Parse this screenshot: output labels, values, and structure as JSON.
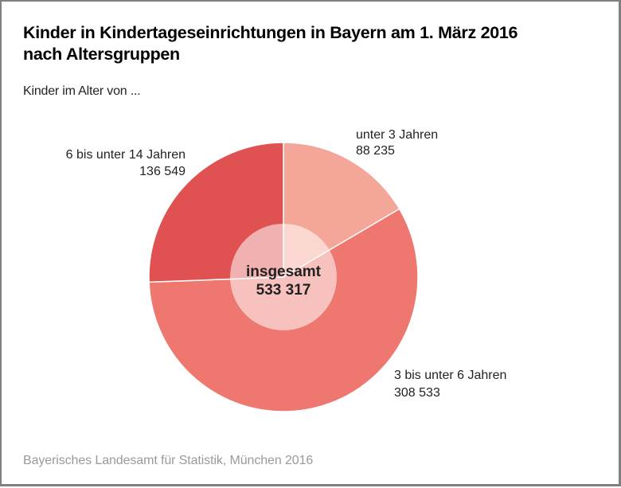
{
  "chart_data": {
    "type": "pie",
    "title": "Kinder in Kindertageseinrichtungen in Bayern am 1. März 2016 nach Altersgruppen",
    "title_lines": [
      "Kinder in Kindertageseinrichtungen in Bayern am 1. März 2016",
      "nach Altersgruppen"
    ],
    "subtitle": "Kinder im Alter von ...",
    "categories": [
      "unter 3 Jahren",
      "3 bis unter 6 Jahren",
      "6 bis unter 14 Jahren"
    ],
    "values": [
      88235,
      308533,
      136549
    ],
    "value_labels": [
      "88 235",
      "308 533",
      "136 549"
    ],
    "colors": [
      "#F4A698",
      "#EE7770",
      "#E05252"
    ],
    "start_angle_deg": 0,
    "direction": "clockwise",
    "center_label": {
      "line1": "insgesamt",
      "line2": "533 317"
    },
    "total": 533317,
    "legend": "none (direct labels)",
    "source": "Bayerisches Landesamt für Statistik, München 2016"
  }
}
